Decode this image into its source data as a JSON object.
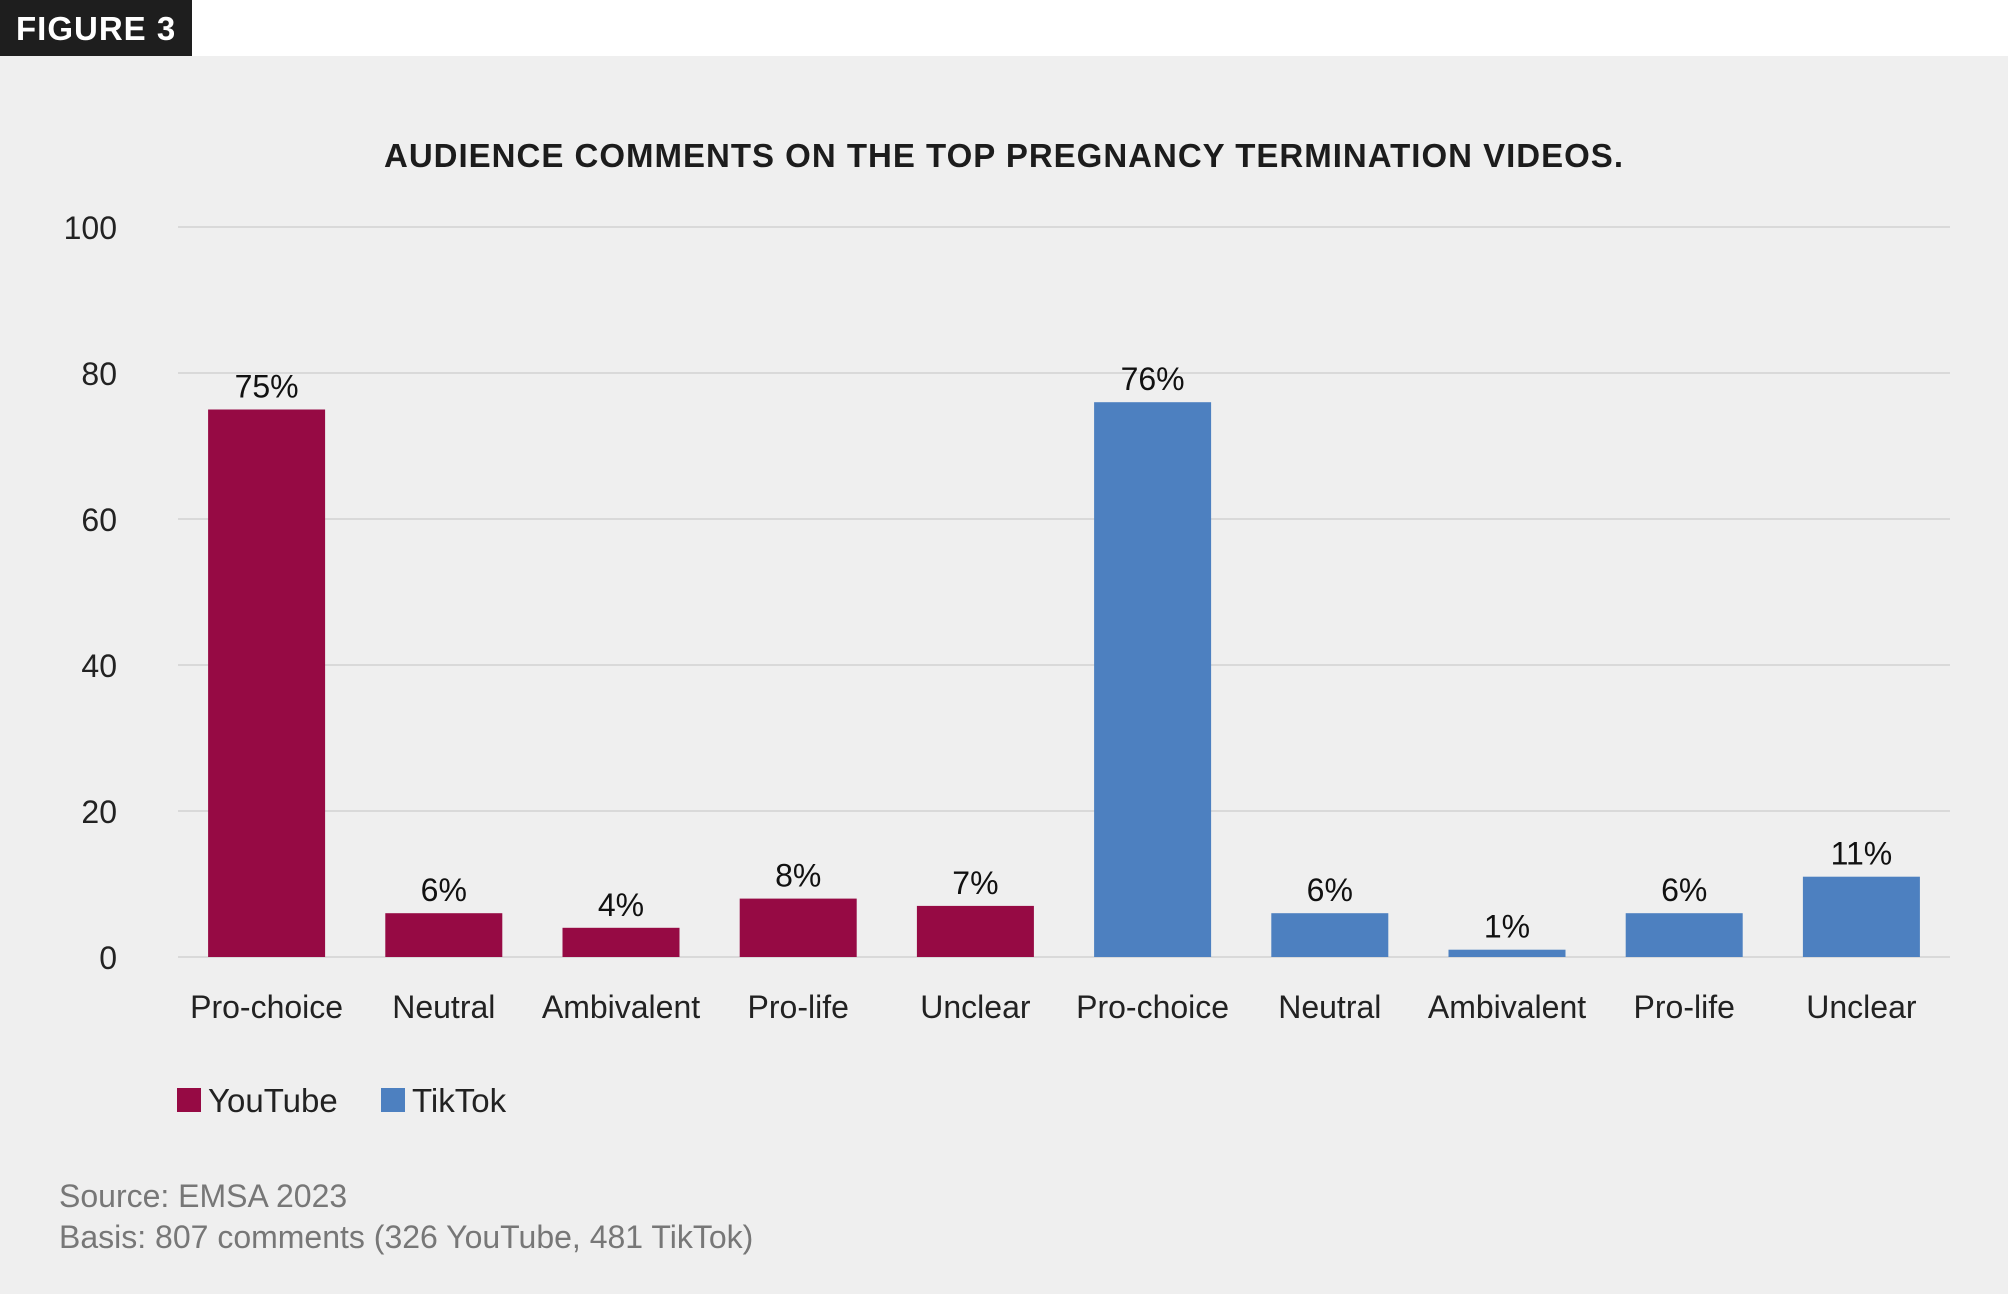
{
  "figure_label": "FIGURE 3",
  "source": "Source: EMSA 2023",
  "basis": "Basis: 807 comments (326 YouTube, 481 TikTok)",
  "colors": {
    "youtube": "#960a44",
    "tiktok": "#4d80c0"
  },
  "chart_data": {
    "type": "bar",
    "title": "AUDIENCE COMMENTS ON THE TOP PREGNANCY TERMINATION VIDEOS.",
    "xlabel": "",
    "ylabel": "",
    "ylim": [
      0,
      100
    ],
    "yticks": [
      "0",
      "20",
      "40",
      "60",
      "80",
      "100"
    ],
    "grid": true,
    "legend_position": "bottom-left",
    "categories": [
      "Pro-choice",
      "Neutral",
      "Ambivalent",
      "Pro-life",
      "Unclear",
      "Pro-choice",
      "Neutral",
      "Ambivalent",
      "Pro-life",
      "Unclear"
    ],
    "series": [
      {
        "name": "YouTube",
        "color": "#960a44",
        "values": [
          75,
          6,
          4,
          8,
          7,
          null,
          null,
          null,
          null,
          null
        ],
        "labels": [
          "75%",
          "6%",
          "4%",
          "8%",
          "7%",
          null,
          null,
          null,
          null,
          null
        ]
      },
      {
        "name": "TikTok",
        "color": "#4d80c0",
        "values": [
          null,
          null,
          null,
          null,
          null,
          76,
          6,
          1,
          6,
          11
        ],
        "labels": [
          null,
          null,
          null,
          null,
          null,
          "76%",
          "6%",
          "1%",
          "6%",
          "11%"
        ]
      }
    ]
  }
}
